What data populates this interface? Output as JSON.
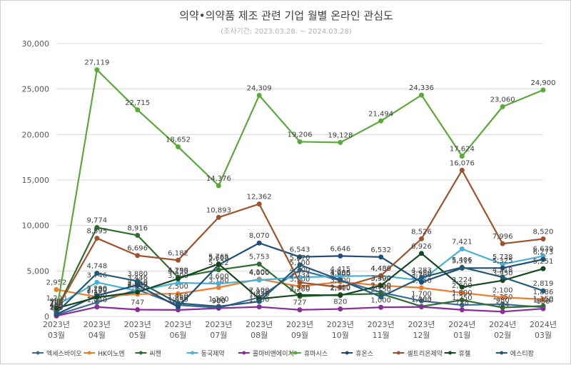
{
  "title": "의약•의약품 제조 관련 기업 월별 온라인 관심도",
  "subtitle": "(조사기간: 2023.03.28. ~ 2024.03.28)",
  "chart_data": {
    "type": "line",
    "title": "의약•의약품 제조 관련 기업 월별 온라인 관심도",
    "subtitle": "(조사기간: 2023.03.28. ~ 2024.03.28)",
    "xlabel": "",
    "ylabel": "",
    "ylim": [
      0,
      30000
    ],
    "yticks": [
      0,
      5000,
      10000,
      15000,
      20000,
      25000,
      30000
    ],
    "ytick_labels": [
      "0",
      "5,000",
      "10,000",
      "15,000",
      "20,000",
      "25,000",
      "30,000"
    ],
    "grid": true,
    "legend_position": "bottom",
    "categories": [
      [
        "2023년",
        "03월"
      ],
      [
        "2023년",
        "04월"
      ],
      [
        "2023년",
        "05월"
      ],
      [
        "2023년",
        "06월"
      ],
      [
        "2023년",
        "07월"
      ],
      [
        "2023년",
        "08월"
      ],
      [
        "2023년",
        "09월"
      ],
      [
        "2023년",
        "10월"
      ],
      [
        "2023년",
        "11월"
      ],
      [
        "2023년",
        "12월"
      ],
      [
        "2024년",
        "01월"
      ],
      [
        "2024년",
        "02월"
      ],
      [
        "2024년",
        "03월"
      ]
    ],
    "series": [
      {
        "name": "엑세스바이오",
        "color": "#3a6e97",
        "values": [
          150,
          1550,
          2950,
          1250,
          950,
          2100,
          5100,
          3950,
          2650,
          1700,
          1250,
          1350,
          1000
        ]
      },
      {
        "name": "HK이노엔",
        "color": "#ed7d31",
        "values": [
          2952,
          2150,
          2450,
          2500,
          3180,
          4100,
          3300,
          3800,
          3400,
          3150,
          2600,
          2100,
          1886
        ]
      },
      {
        "name": "씨젠",
        "color": "#2e6e2e",
        "values": [
          700,
          9774,
          8916,
          4299,
          5122,
          5753,
          2200,
          2400,
          2500,
          1103,
          1800,
          980,
          1150
        ]
      },
      {
        "name": "동국제약",
        "color": "#4ab0d8",
        "values": [
          1200,
          3746,
          2800,
          3700,
          3600,
          4000,
          4300,
          4415,
          4480,
          3950,
          7421,
          5738,
          6639
        ]
      },
      {
        "name": "콜마비앤에이치",
        "color": "#8b2c9b",
        "values": [
          50,
          1040,
          747,
          714,
          900,
          1050,
          727,
          820,
          1000,
          1050,
          728,
          524,
          850
        ]
      },
      {
        "name": "휴마시스",
        "color": "#5aaa3a",
        "values": [
          450,
          27119,
          22715,
          18652,
          14376,
          24309,
          19206,
          19128,
          21494,
          24336,
          17624,
          23060,
          24900
        ]
      },
      {
        "name": "휴온스",
        "color": "#1f4e79",
        "values": [
          250,
          2290,
          3446,
          1050,
          5668,
          8070,
          6543,
          6646,
          6532,
          3760,
          5311,
          5325,
          6273
        ]
      },
      {
        "name": "셀트리온제약",
        "color": "#a0522d",
        "values": [
          750,
          8595,
          6696,
          6182,
          10893,
          12362,
          3734,
          3200,
          4486,
          8526,
          16076,
          7996,
          8520
        ]
      },
      {
        "name": "휴젤",
        "color": "#15471f",
        "values": [
          900,
          2100,
          2680,
          4150,
          5765,
          1926,
          2370,
          2310,
          3390,
          6926,
          3224,
          3950,
          5251
        ]
      },
      {
        "name": "에스티팜",
        "color": "#245a73",
        "values": [
          400,
          4748,
          3880,
          1450,
          1100,
          1636,
          5670,
          4005,
          2150,
          4283,
          5406,
          4318,
          2819
        ]
      }
    ]
  }
}
